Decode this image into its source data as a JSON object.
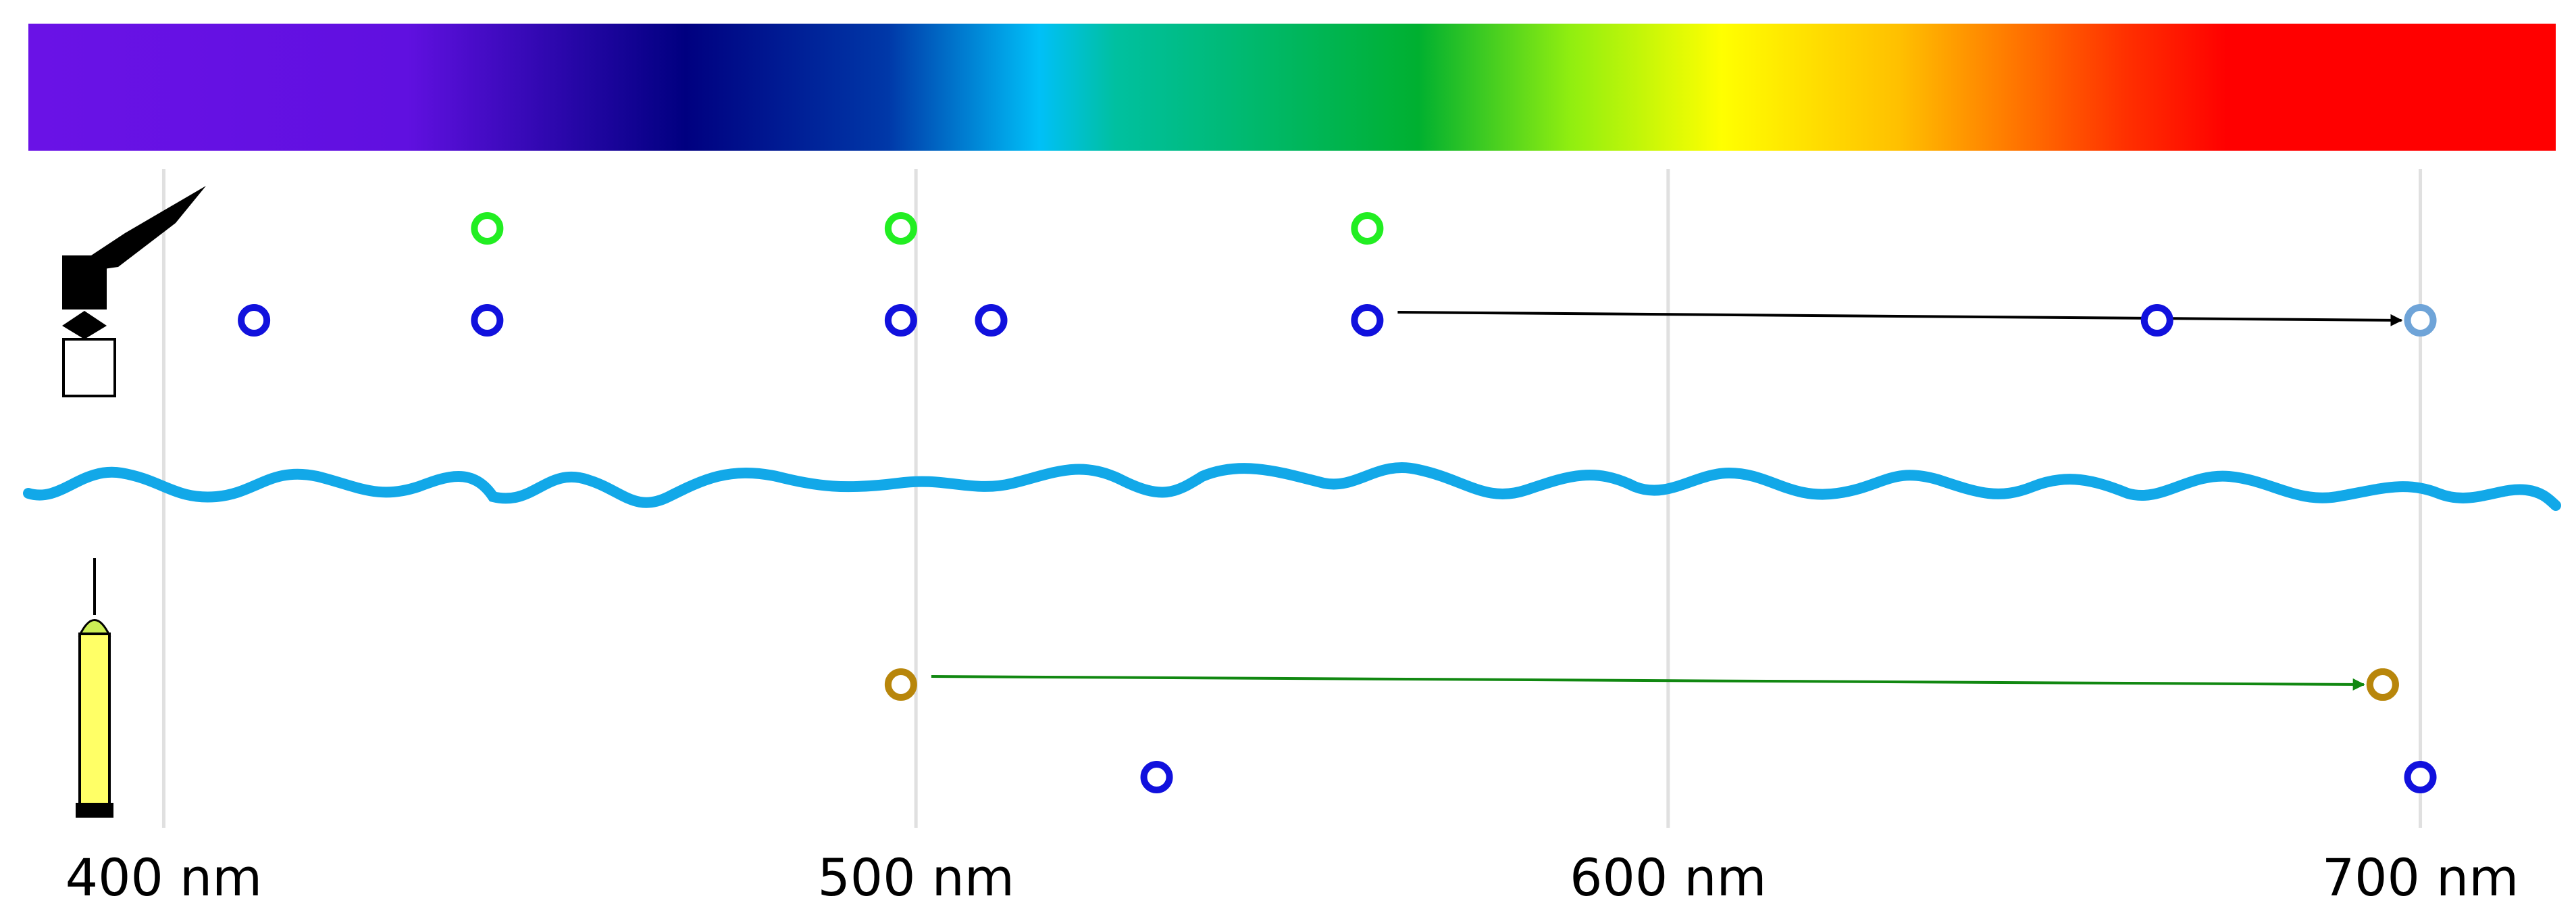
{
  "chart_data": {
    "type": "scatter",
    "xlim": [
      382,
      718
    ],
    "x_unit": "nm",
    "x_ticks": [
      {
        "value": 400,
        "label": "400 nm"
      },
      {
        "value": 500,
        "label": "500 nm"
      },
      {
        "value": 600,
        "label": "600 nm"
      },
      {
        "value": 700,
        "label": "700 nm"
      }
    ],
    "grid": true,
    "spectrum_bar": true,
    "rows": [
      {
        "id": "satellite-row-1",
        "color": "#22ee22",
        "points": [
          443,
          498,
          560
        ]
      },
      {
        "id": "satellite-row-2",
        "color": "#1111dd",
        "points": [
          412,
          443,
          498,
          510,
          560,
          665
        ]
      },
      {
        "id": "float-row-1",
        "color": "#b8860b",
        "points": [
          498,
          695
        ]
      },
      {
        "id": "float-row-2",
        "color": "#1111dd",
        "points": [
          532,
          700
        ]
      }
    ],
    "shifts": [
      {
        "from": 560,
        "to": 700,
        "row": "satellite-row-2",
        "arrow_color": "#000000",
        "target_color": "#6fa4d8"
      },
      {
        "from": 498,
        "to": 695,
        "row": "float-row-1",
        "arrow_color": "#118811",
        "target_color": "#b8860b"
      }
    ],
    "icons": {
      "upper": "satellite-icon",
      "lower": "profiling-float-icon",
      "divider": "sea-surface-wave-icon"
    },
    "colors": {
      "wave": "#12a8e8",
      "grid": "#e0e0e0",
      "float_body": "#ffff66"
    }
  }
}
